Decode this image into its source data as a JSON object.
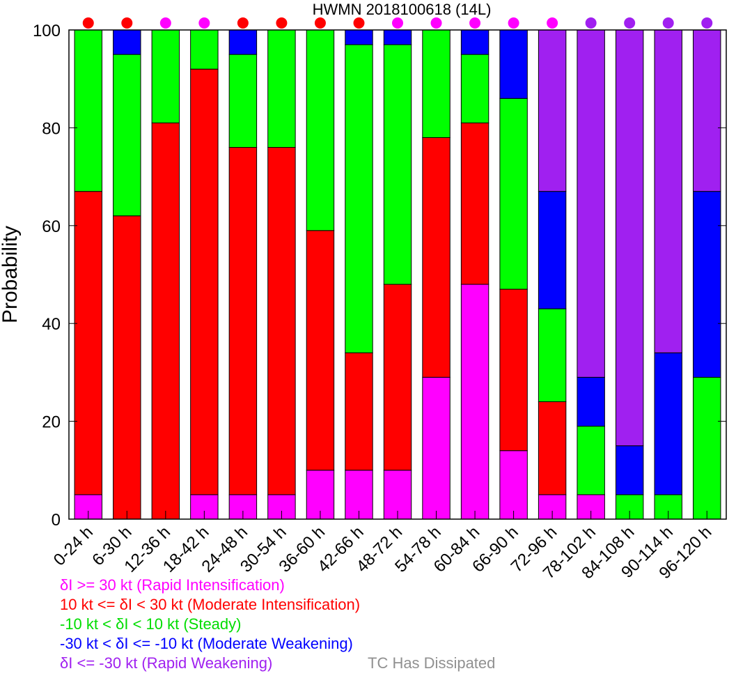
{
  "chart_data": {
    "type": "bar",
    "stacked": true,
    "title": "HWMN 2018100618  (14L)",
    "ylabel": "Probability",
    "xlabel": "",
    "ylim": [
      0,
      100
    ],
    "yticks": [
      0,
      20,
      40,
      60,
      80,
      100
    ],
    "grid": false,
    "legend_placement": "bottom-left",
    "categories": [
      "0-24 h",
      "6-30 h",
      "12-36 h",
      "18-42 h",
      "24-48 h",
      "30-54 h",
      "36-60 h",
      "42-66 h",
      "48-72 h",
      "54-78 h",
      "60-84 h",
      "66-90 h",
      "72-96 h",
      "78-102 h",
      "84-108 h",
      "90-114 h",
      "96-120 h"
    ],
    "series": [
      {
        "key": "ri",
        "label": "δI >= 30 kt (Rapid Intensification)",
        "color": "#ff00ff",
        "values": [
          5,
          0,
          0,
          5,
          5,
          5,
          10,
          10,
          10,
          29,
          48,
          14,
          5,
          5,
          0,
          0,
          0
        ]
      },
      {
        "key": "mi",
        "label": "10 kt <= δI < 30 kt (Moderate Intensification)",
        "color": "#ff0000",
        "values": [
          62,
          62,
          81,
          87,
          71,
          71,
          49,
          24,
          38,
          49,
          33,
          33,
          19,
          0,
          0,
          0,
          0
        ]
      },
      {
        "key": "st",
        "label": "-10 kt < δI < 10 kt (Steady)",
        "color": "#00ff00",
        "values": [
          33,
          33,
          19,
          8,
          19,
          24,
          41,
          63,
          49,
          22,
          14,
          39,
          19,
          14,
          5,
          5,
          29
        ]
      },
      {
        "key": "mw",
        "label": "-30 kt < δI <= -10 kt (Moderate Weakening)",
        "color": "#0000ff",
        "values": [
          0,
          5,
          0,
          0,
          5,
          0,
          0,
          3,
          3,
          0,
          5,
          14,
          24,
          10,
          10,
          29,
          38
        ]
      },
      {
        "key": "rw",
        "label": "δI <= -30 kt (Rapid Weakening)",
        "color": "#a020f0",
        "values": [
          0,
          0,
          0,
          0,
          0,
          0,
          0,
          0,
          0,
          0,
          0,
          0,
          33,
          71,
          85,
          66,
          33
        ]
      }
    ],
    "dots": [
      "#ff0000",
      "#ff0000",
      "#ff00ff",
      "#ff00ff",
      "#ff0000",
      "#ff0000",
      "#ff0000",
      "#ff0000",
      "#ff00ff",
      "#ff00ff",
      "#ff00ff",
      "#ff00ff",
      "#ff00ff",
      "#a020f0",
      "#a020f0",
      "#a020f0",
      "#a020f0"
    ],
    "dissipated_label": "TC Has Dissipated",
    "dissipated_color": "#909090"
  }
}
